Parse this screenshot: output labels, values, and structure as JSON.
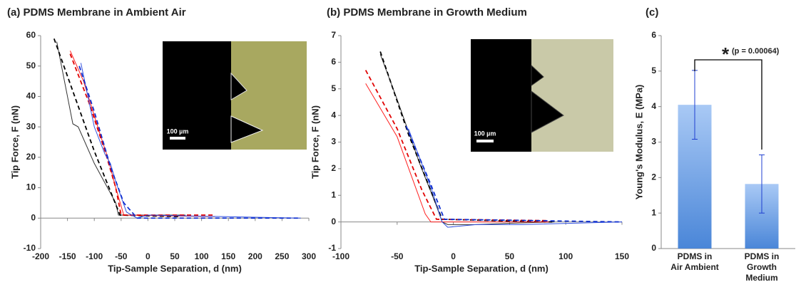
{
  "chart_data": [
    {
      "type": "line",
      "title": "(a) PDMS Membrane in Ambient Air",
      "x_label": "Tip-Sample Separation, d (nm)",
      "y_label": "Tip Force, F (nN)",
      "inset_label": "100 µm",
      "xlim": [
        -200,
        300
      ],
      "xticks": [
        -200,
        -150,
        -100,
        -50,
        0,
        50,
        100,
        150,
        200,
        250,
        300
      ],
      "ylim": [
        -10,
        60
      ],
      "yticks": [
        -10,
        0,
        10,
        20,
        30,
        40,
        50,
        60
      ],
      "series": [
        {
          "color": "#333333",
          "dashed": false,
          "x": [
            -170,
            -150,
            -140,
            -130,
            -100,
            -60,
            -55,
            0,
            70
          ],
          "values": [
            58,
            40,
            31,
            30,
            18,
            5,
            1,
            1,
            1
          ]
        },
        {
          "color": "#000000",
          "dashed": true,
          "x": [
            -175,
            -100,
            -52,
            60
          ],
          "values": [
            59,
            22,
            1,
            0.5
          ]
        },
        {
          "color": "#ff2020",
          "dashed": false,
          "x": [
            -145,
            -120,
            -90,
            -75,
            -60,
            -45,
            125
          ],
          "values": [
            55,
            45,
            28,
            20,
            10,
            1,
            0.5
          ]
        },
        {
          "color": "#e00000",
          "dashed": true,
          "x": [
            -145,
            -110,
            -80,
            -60,
            -50,
            125
          ],
          "values": [
            54,
            38,
            22,
            10,
            1,
            1
          ]
        },
        {
          "color": "#3050e0",
          "dashed": false,
          "x": [
            -125,
            -100,
            -80,
            -70,
            -60,
            -40,
            -20,
            0,
            285
          ],
          "values": [
            51,
            30,
            21,
            18,
            12,
            2,
            0,
            1,
            0
          ]
        },
        {
          "color": "#1030d0",
          "dashed": true,
          "x": [
            -128,
            -100,
            -70,
            -45,
            -20,
            285
          ],
          "values": [
            50,
            35,
            17,
            5,
            0,
            0
          ]
        }
      ]
    },
    {
      "type": "line",
      "title": "(b) PDMS Membrane in Growth Medium",
      "x_label": "Tip-Sample Separation, d (nm)",
      "y_label": "Tip Force, F (nN)",
      "inset_label": "100 µm",
      "xlim": [
        -100,
        150
      ],
      "xticks": [
        -100,
        -50,
        0,
        50,
        100,
        150
      ],
      "ylim": [
        -1,
        7
      ],
      "yticks": [
        -1,
        0,
        1,
        2,
        3,
        4,
        5,
        6,
        7
      ],
      "series": [
        {
          "color": "#333333",
          "dashed": false,
          "x": [
            -65,
            -50,
            -30,
            -15,
            -10,
            -5,
            20,
            50,
            90
          ],
          "values": [
            6.3,
            4.6,
            2.2,
            0.6,
            0,
            -0.1,
            -0.1,
            -0.05,
            0
          ]
        },
        {
          "color": "#000000",
          "dashed": true,
          "x": [
            -65,
            -40,
            -10,
            88
          ],
          "values": [
            6.4,
            3.3,
            0.1,
            0
          ]
        },
        {
          "color": "#ff2020",
          "dashed": false,
          "x": [
            -78,
            -50,
            -25,
            -20,
            85
          ],
          "values": [
            5.2,
            3.2,
            0.3,
            0,
            0
          ]
        },
        {
          "color": "#e00000",
          "dashed": true,
          "x": [
            -78,
            -50,
            -28,
            -15,
            85
          ],
          "values": [
            5.7,
            3.5,
            1.2,
            0.1,
            0.05
          ]
        },
        {
          "color": "#3050e0",
          "dashed": false,
          "x": [
            -40,
            -20,
            -10,
            -5,
            20,
            60,
            150
          ],
          "values": [
            3.5,
            1.3,
            0,
            -0.2,
            -0.1,
            -0.1,
            0
          ]
        },
        {
          "color": "#1030d0",
          "dashed": true,
          "x": [
            -42,
            -20,
            -8,
            150
          ],
          "values": [
            3.6,
            1.4,
            0.1,
            0
          ]
        }
      ]
    },
    {
      "type": "bar",
      "title": "(c)",
      "y_label": "Young's Modulus, E (MPa)",
      "annotation_star": "*",
      "annotation": "(p = 0.00064)",
      "categories": [
        "PDMS in\nAir Ambient",
        "PDMS in\nGrowth\nMedium"
      ],
      "values": [
        4.05,
        1.82
      ],
      "errors": [
        0.97,
        0.82
      ],
      "color": "#6fa4e6",
      "ylim": [
        0,
        6
      ],
      "yticks": [
        0,
        1,
        2,
        3,
        4,
        5,
        6
      ]
    }
  ]
}
